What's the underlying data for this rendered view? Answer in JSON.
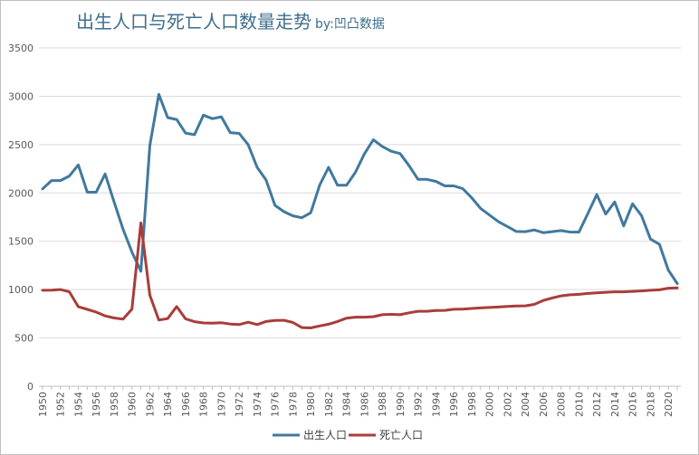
{
  "chart_data": {
    "type": "line",
    "title": "出生人口与死亡人口数量走势",
    "subtitle": "by:凹凸数据",
    "ylim": [
      0,
      3500
    ],
    "yticks": [
      0,
      500,
      1000,
      1500,
      2000,
      2500,
      3000,
      3500
    ],
    "grid": true,
    "legend": "bottom",
    "x": [
      1950,
      1951,
      1952,
      1953,
      1954,
      1955,
      1956,
      1957,
      1958,
      1959,
      1960,
      1961,
      1962,
      1963,
      1964,
      1965,
      1966,
      1967,
      1968,
      1969,
      1970,
      1971,
      1972,
      1973,
      1974,
      1975,
      1976,
      1977,
      1978,
      1979,
      1980,
      1981,
      1982,
      1983,
      1984,
      1985,
      1986,
      1987,
      1988,
      1989,
      1990,
      1991,
      1992,
      1993,
      1994,
      1995,
      1996,
      1997,
      1998,
      1999,
      2000,
      2001,
      2002,
      2003,
      2004,
      2005,
      2006,
      2007,
      2008,
      2009,
      2010,
      2011,
      2012,
      2013,
      2014,
      2015,
      2016,
      2017,
      2018,
      2019,
      2020,
      2021
    ],
    "xtick_labels": [
      "1950",
      "1952",
      "1954",
      "1956",
      "1958",
      "1960",
      "1962",
      "1964",
      "1966",
      "1968",
      "1970",
      "1972",
      "1974",
      "1976",
      "1978",
      "1980",
      "1982",
      "1984",
      "1986",
      "1988",
      "1990",
      "1992",
      "1994",
      "1996",
      "1998",
      "2000",
      "2002",
      "2004",
      "2006",
      "2008",
      "2010",
      "2012",
      "2014",
      "2016",
      "2018",
      "2020"
    ],
    "series": [
      {
        "name": "出生人口",
        "color": "#41799e",
        "values": [
          2042,
          2128,
          2128,
          2175,
          2290,
          2007,
          2007,
          2196,
          1907,
          1625,
          1389,
          1189,
          2491,
          3020,
          2779,
          2760,
          2618,
          2603,
          2805,
          2768,
          2788,
          2624,
          2616,
          2500,
          2265,
          2135,
          1872,
          1806,
          1763,
          1743,
          1795,
          2082,
          2265,
          2079,
          2079,
          2214,
          2403,
          2550,
          2481,
          2431,
          2407,
          2282,
          2140,
          2140,
          2120,
          2073,
          2073,
          2045,
          1950,
          1840,
          1771,
          1702,
          1653,
          1601,
          1599,
          1617,
          1589,
          1599,
          1611,
          1596,
          1595,
          1787,
          1983,
          1782,
          1906,
          1659,
          1888,
          1765,
          1523,
          1468,
          1202,
          1062
        ]
      },
      {
        "name": "死亡人口",
        "color": "#a83d3a",
        "values": [
          993,
          995,
          1000,
          977,
          823,
          795,
          767,
          728,
          707,
          694,
          798,
          1690,
          941,
          685,
          700,
          824,
          697,
          668,
          655,
          653,
          657,
          644,
          638,
          663,
          638,
          670,
          680,
          682,
          660,
          607,
          604,
          624,
          642,
          670,
          705,
          715,
          715,
          720,
          740,
          744,
          740,
          760,
          776,
          776,
          783,
          785,
          796,
          798,
          805,
          810,
          815,
          820,
          826,
          830,
          832,
          847,
          887,
          913,
          935,
          946,
          951,
          960,
          966,
          972,
          977,
          977,
          982,
          986,
          993,
          998,
          1014,
          1018
        ]
      }
    ]
  }
}
